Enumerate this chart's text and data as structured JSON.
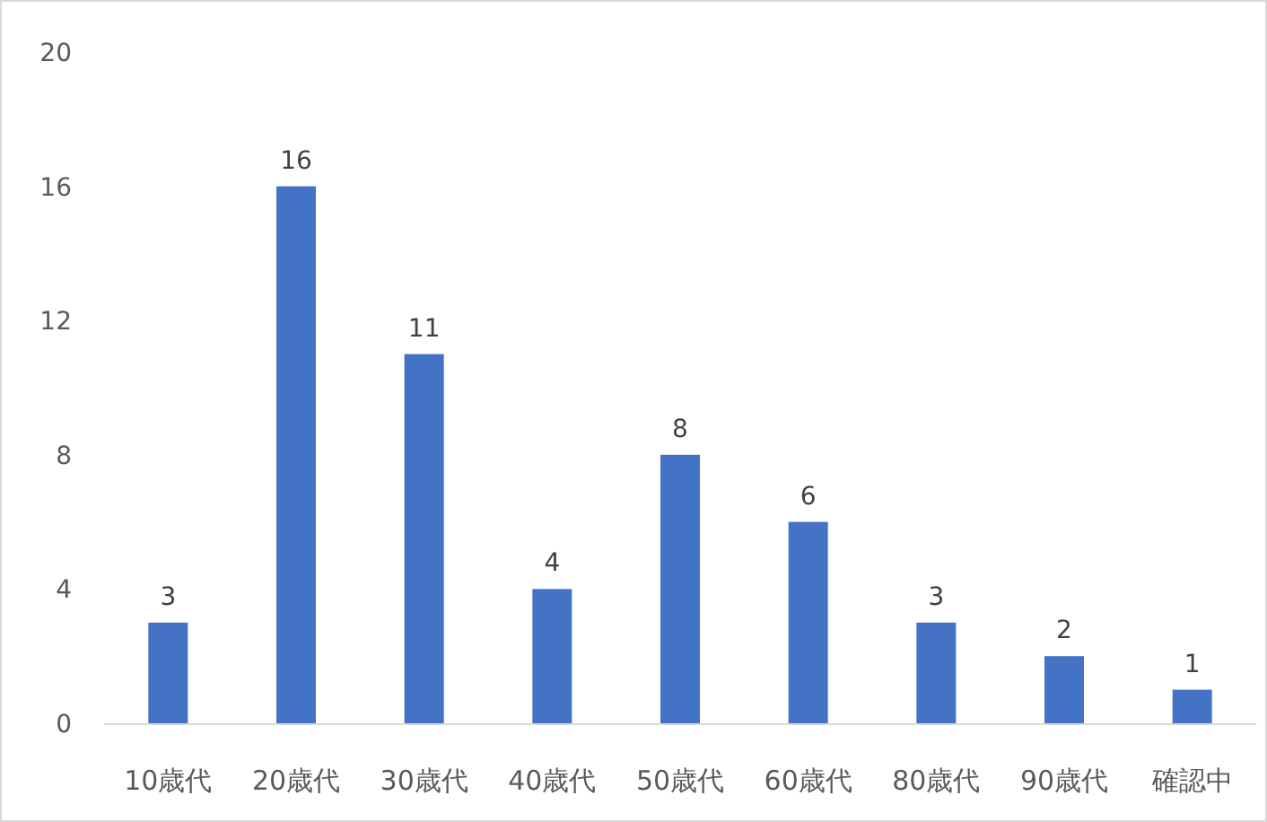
{
  "chart_data": {
    "type": "bar",
    "categories": [
      "10歳代",
      "20歳代",
      "30歳代",
      "40歳代",
      "50歳代",
      "60歳代",
      "80歳代",
      "90歳代",
      "確認中"
    ],
    "values": [
      3,
      16,
      11,
      4,
      8,
      6,
      3,
      2,
      1
    ],
    "color": "#4472c4",
    "ylim": [
      0,
      20
    ],
    "yticks": [
      0,
      4,
      8,
      12,
      16,
      20
    ],
    "data_labels": true
  }
}
